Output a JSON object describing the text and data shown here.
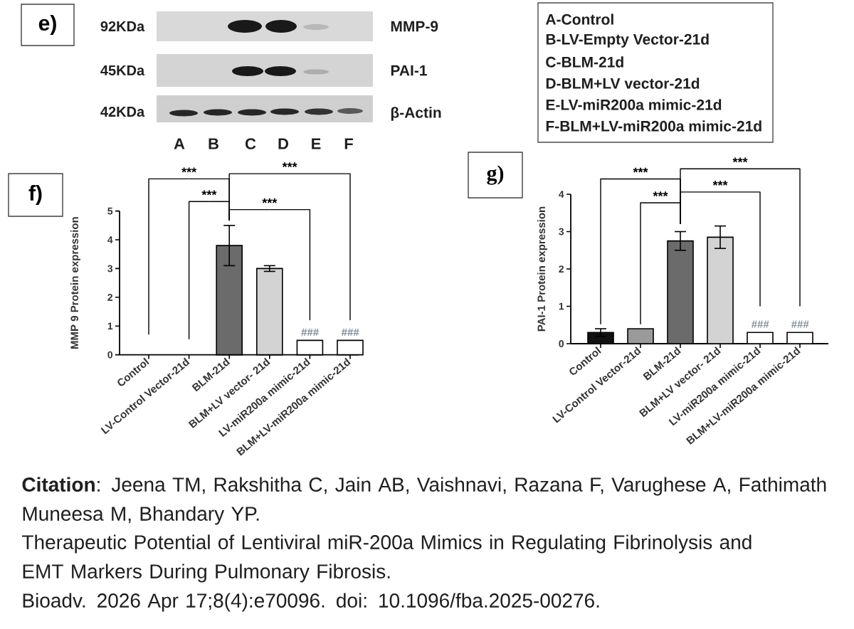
{
  "chart_data": [
    {
      "type": "other",
      "title": "e)",
      "annotations": [
        "92KDa",
        "45KDa",
        "42KDa",
        "MMP-9",
        "PAI-1",
        "β-Actin",
        "A",
        "B",
        "C",
        "D",
        "E",
        "F",
        "A-Control",
        "B-LV-Empty Vector-21d",
        "C-BLM-21d",
        "D-BLM+LV vector-21d",
        "E-LV-miR200a mimic-21d",
        "F-BLM+LV-miR200a mimic-21d"
      ]
    },
    {
      "type": "bar",
      "title": "f)",
      "ylabel": "MMP 9 Protein expression",
      "categories": [
        "Control",
        "LV-Control Vector-21d",
        "BLM-21d",
        "BLM+LV vector- 21d",
        "LV-miR200a mimic-21d",
        "BLM+LV-miR200a mimic-21d"
      ],
      "values": [
        null,
        null,
        3.8,
        3.0,
        0.5,
        0.5
      ],
      "colors": [
        null,
        null,
        "#6b6b6b",
        "#d3d3d3",
        "#ffffff",
        "#ffffff"
      ],
      "errors": [
        null,
        null,
        0.7,
        0.1,
        null,
        null
      ],
      "ylim": [
        0,
        5
      ],
      "yticks": [
        0,
        1,
        2,
        3,
        4,
        5
      ],
      "annotations": [
        {
          "text": "***",
          "x": "BLM-21d",
          "y": 4.5
        },
        {
          "text": "***",
          "x": "BLM-21d",
          "y": 4.5
        },
        {
          "text": "***",
          "x": "BLM-21d",
          "y": 4.5
        },
        {
          "text": "***",
          "x": "BLM-21d",
          "y": 4.5
        },
        {
          "text": "###",
          "x": "LV-miR200a mimic-21d",
          "y": 0.5
        },
        {
          "text": "###",
          "x": "BLM+LV-miR200a mimic-21d",
          "y": 0.5
        }
      ]
    },
    {
      "type": "bar",
      "title": "g)",
      "ylabel": "PAI-1 Protein expression",
      "categories": [
        "Control",
        "LV-Control Vector-21d",
        "BLM-21d",
        "BLM+LV vector- 21d",
        "LV-miR200a mimic-21d",
        "BLM+LV-miR200a mimic-21d"
      ],
      "values": [
        0.3,
        0.4,
        2.75,
        2.85,
        0.3,
        0.3
      ],
      "colors": [
        "#111111",
        "#9a9a9a",
        "#6b6b6b",
        "#d3d3d3",
        "#ffffff",
        "#ffffff"
      ],
      "errors": [
        0.1,
        null,
        0.25,
        0.3,
        null,
        null
      ],
      "ylim": [
        0,
        4
      ],
      "yticks": [
        0,
        1,
        2,
        3,
        4
      ],
      "annotations": [
        "***",
        "***",
        "***",
        "***",
        {
          "text": "###",
          "x": "LV-miR200a mimic-21d",
          "y": 0.3
        },
        {
          "text": "###",
          "x": "BLM+LV-miR200a mimic-21d",
          "y": 0.3
        }
      ]
    },
    {
      "type": "other",
      "annotations": [
        "**Citation**: Jeena TM, Rakshitha C, Jain AB, Vaishnavi, Razana F, Varughese A, Fathimath Muneesa M, Bhandary YP.",
        "Therapeutic Potential of Lentiviral miR-200a Mimics in Regulating Fibrinolysis and EMT Markers During Pulmonary Fibrosis.",
        "Bioadv. 2026 Apr 17;8(4):e70096. doi: 10.1096/fba.2025-00276."
      ]
    }
  ]
}
